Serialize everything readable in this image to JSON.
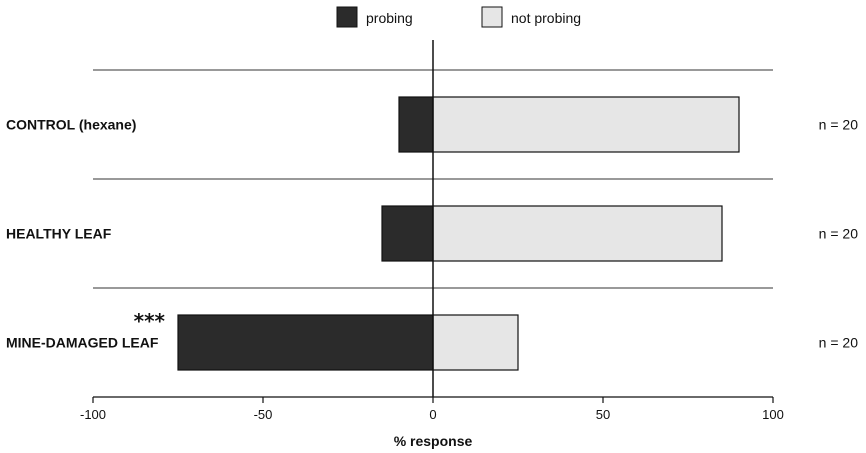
{
  "chart_data": {
    "type": "bar",
    "orientation": "horizontal-diverging",
    "legend": {
      "placement": "top-center",
      "entries": [
        {
          "name": "probing",
          "color": "#2b2b2b"
        },
        {
          "name": "not probing",
          "color": "#e6e6e6"
        }
      ]
    },
    "categories": [
      "CONTROL (hexane)",
      "HEALTHY LEAF",
      "MINE-DAMAGED LEAF"
    ],
    "series": [
      {
        "name": "probing",
        "color": "#2b2b2b",
        "values": [
          -10,
          -15,
          -75
        ]
      },
      {
        "name": "not probing",
        "color": "#e6e6e6",
        "values": [
          90,
          85,
          25
        ]
      }
    ],
    "n_labels": [
      "n = 20",
      "n = 20",
      "n = 20"
    ],
    "annotations": [
      {
        "category": "MINE-DAMAGED LEAF",
        "text": "***"
      }
    ],
    "xlabel": "% response",
    "xlim": [
      -100,
      100
    ],
    "xticks": [
      {
        "value": -100,
        "label": "-100"
      },
      {
        "value": -50,
        "label": "-50"
      },
      {
        "value": 0,
        "label": "0"
      },
      {
        "value": 50,
        "label": "50"
      },
      {
        "value": 100,
        "label": "100"
      }
    ],
    "grid": false
  }
}
